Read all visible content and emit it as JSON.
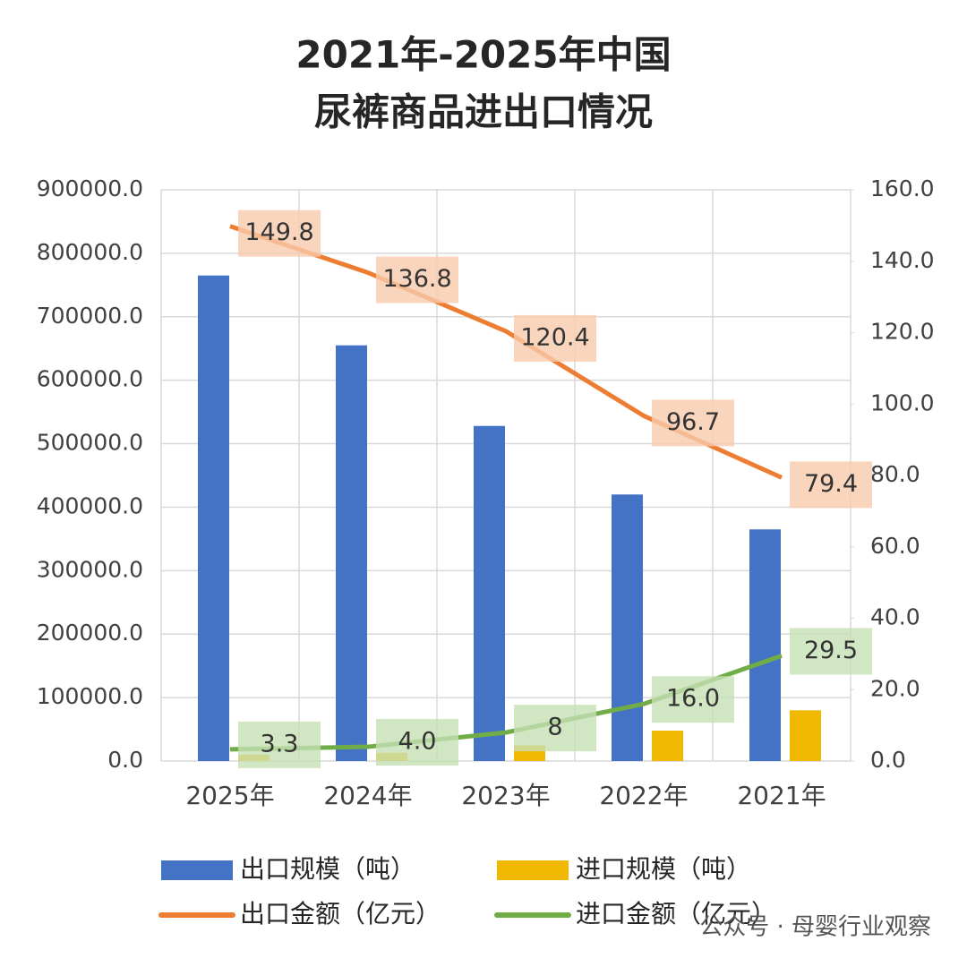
{
  "chart_data": {
    "type": "bar-line",
    "title": [
      "2021年-2025年中国",
      "尿裤商品进出口情况"
    ],
    "categories": [
      "2025年",
      "2024年",
      "2023年",
      "2022年",
      "2021年"
    ],
    "series": [
      {
        "name": "出口规模（吨）",
        "color": "#4472c4",
        "kind": "bar",
        "values": [
          765000,
          655000,
          528000,
          420000,
          365000
        ]
      },
      {
        "name": "进口规模（吨）",
        "color": "#f0b800",
        "kind": "bar",
        "values": [
          10000,
          13000,
          25000,
          48000,
          80000
        ]
      },
      {
        "name": "出口金额（亿元）",
        "color": "#ed7d31",
        "kind": "line",
        "axis": "y2",
        "values": [
          149.8,
          136.8,
          120.4,
          96.7,
          79.4
        ],
        "value_labels": [
          "149.8",
          "136.8",
          "120.4",
          "96.7",
          "79.4"
        ]
      },
      {
        "name": "进口金额（亿元）",
        "color": "#70ad47",
        "kind": "line",
        "axis": "y2",
        "values": [
          3.3,
          4,
          8,
          16,
          29.5
        ],
        "value_labels": [
          "3.3",
          "4.0",
          "8",
          "16.0",
          "29.5"
        ]
      }
    ],
    "ylim": [
      0,
      900000
    ],
    "yticks": [
      {
        "value": 0,
        "label": "0.0"
      },
      {
        "value": 100000,
        "label": "100000.0"
      },
      {
        "value": 200000,
        "label": "200000.0"
      },
      {
        "value": 300000,
        "label": "300000.0"
      },
      {
        "value": 400000,
        "label": "400000.0"
      },
      {
        "value": 500000,
        "label": "500000.0"
      },
      {
        "value": 600000,
        "label": "600000.0"
      },
      {
        "value": 700000,
        "label": "700000.0"
      },
      {
        "value": 800000,
        "label": "800000.0"
      },
      {
        "value": 900000,
        "label": "900000.0"
      }
    ],
    "y2lim": [
      0,
      160
    ],
    "y2ticks": [
      {
        "value": 0,
        "label": "0.0"
      },
      {
        "value": 20,
        "label": "20.0"
      },
      {
        "value": 40,
        "label": "40.0"
      },
      {
        "value": 60,
        "label": "60.0"
      },
      {
        "value": 80,
        "label": "80.0"
      },
      {
        "value": 100,
        "label": "100.0"
      },
      {
        "value": 120,
        "label": "120.0"
      },
      {
        "value": 140,
        "label": "140.0"
      },
      {
        "value": 160,
        "label": "160.0"
      }
    ],
    "grid": true,
    "legend": "bottom",
    "watermark": "公众号 · 母婴行业观察"
  }
}
